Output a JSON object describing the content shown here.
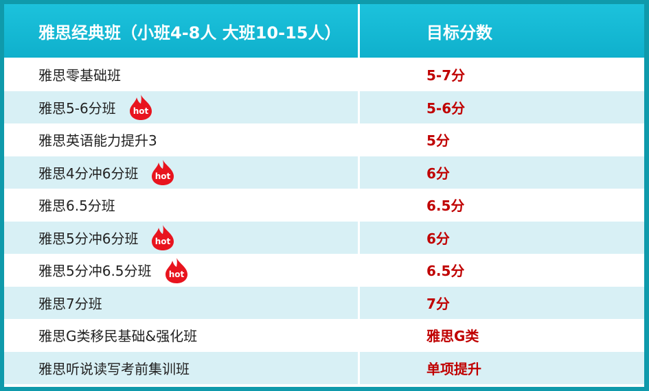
{
  "table": {
    "header": [
      "雅思经典班（小班4-8人 大班10-15人）",
      "目标分数"
    ],
    "rows": [
      {
        "course": "雅思零基础班",
        "score": "5-7分"
      },
      {
        "course": "雅思5-6分班",
        "score": "5-6分",
        "badge": "hot"
      },
      {
        "course": "雅思英语能力提升3",
        "score": "5分"
      },
      {
        "course": "雅思4分冲6分班",
        "score": "6分",
        "badge": "hot"
      },
      {
        "course": "雅思6.5分班",
        "score": "6.5分"
      },
      {
        "course": "雅思5分冲6分班",
        "score": "6分",
        "badge": "hot"
      },
      {
        "course": "雅思5分冲6.5分班",
        "score": "6.5分",
        "badge": "hot"
      },
      {
        "course": "雅思7分班",
        "score": "7分"
      },
      {
        "course": "雅思G类移民基础&强化班",
        "score": "雅思G类"
      },
      {
        "course": "雅思听说读写考前集训班",
        "score": "单项提升"
      }
    ]
  }
}
